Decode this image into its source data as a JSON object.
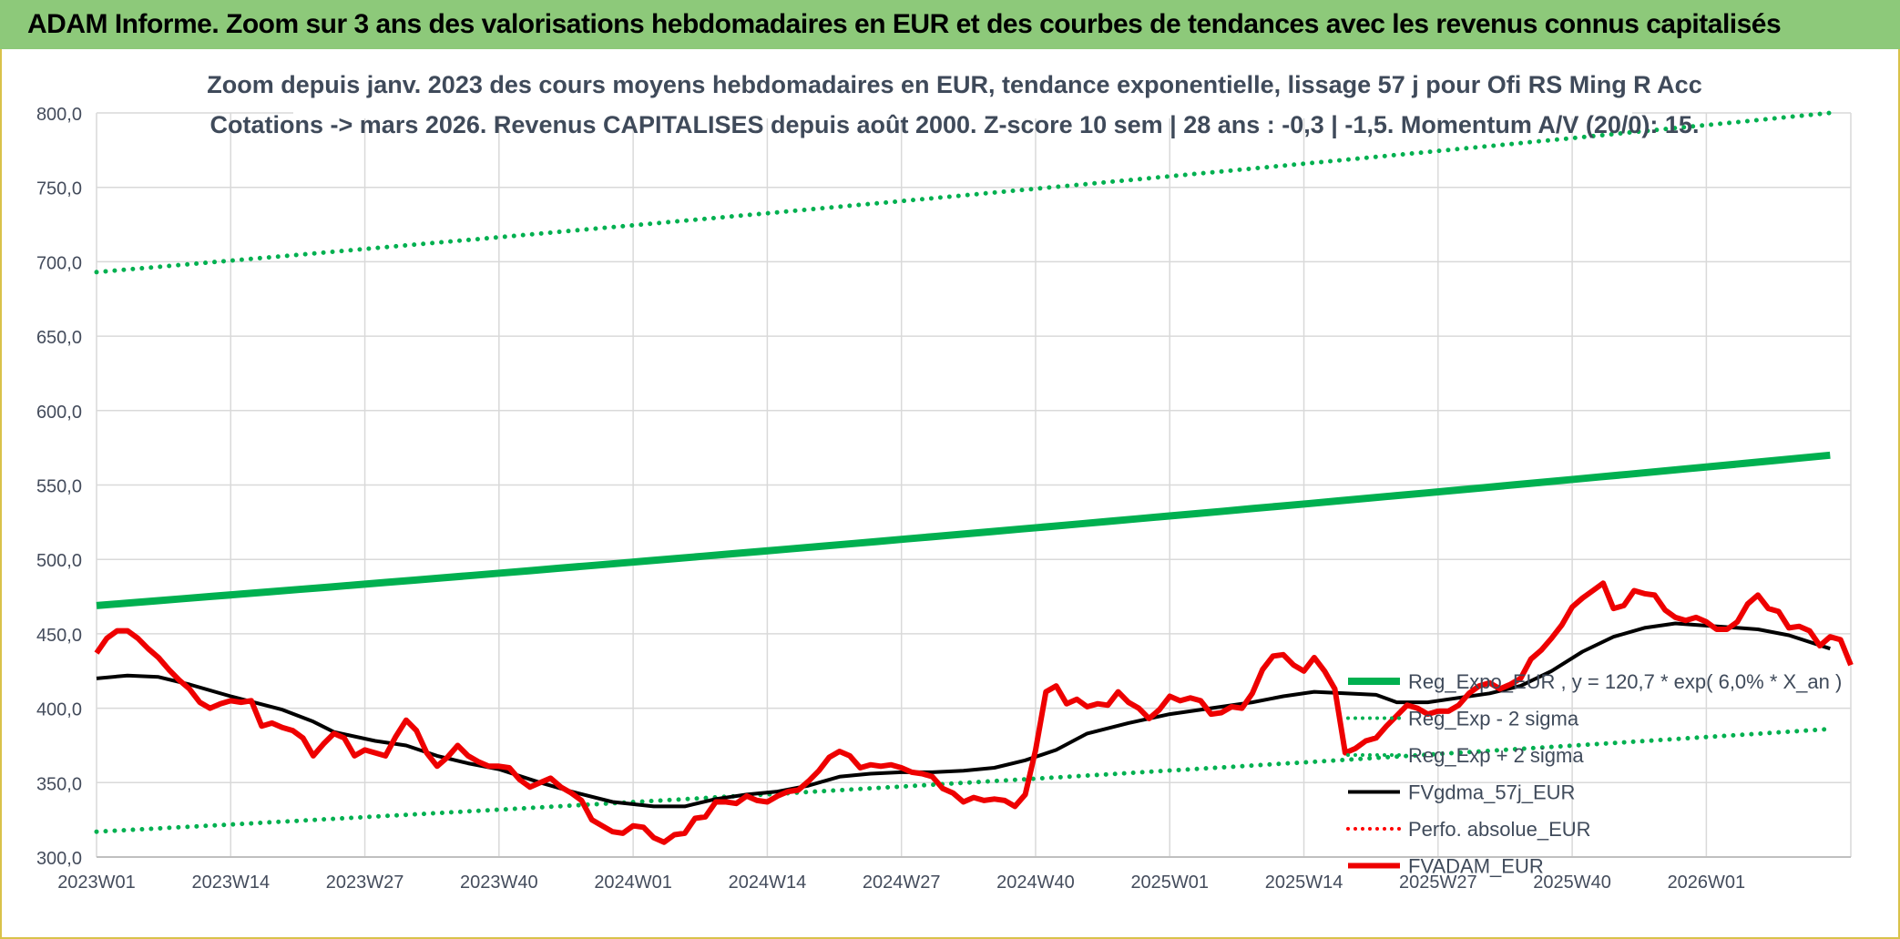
{
  "header": {
    "title": "ADAM Informe. Zoom sur 3 ans des valorisations hebdomadaires en EUR et des courbes de tendances avec les revenus connus capitalisés"
  },
  "colors": {
    "header_bg": "#8dc97a",
    "regression": "#00b050",
    "smoothed": "#000000",
    "price": "#ee0000",
    "perf": "#ff0000",
    "grid": "#d9d9d9"
  },
  "chart_data": {
    "type": "line",
    "subtitle_lines": [
      "Zoom depuis janv. 2023 des cours moyens hebdomadaires en EUR, tendance exponentielle, lissage 57 j pour Ofi RS Ming R Acc",
      "Cotations -> mars 2026. Revenus CAPITALISES depuis août 2000. Z-score 10 sem | 28 ans : -0,3 | -1,5. Momentum A/V (20/0): 15."
    ],
    "ylim": [
      300,
      800
    ],
    "yticks": [
      "800,0",
      "750,0",
      "700,0",
      "650,0",
      "600,0",
      "550,0",
      "500,0",
      "450,0",
      "400,0",
      "350,0",
      "300,0"
    ],
    "xticks": [
      "2023W01",
      "2023W14",
      "2023W27",
      "2023W40",
      "2024W01",
      "2024W14",
      "2024W27",
      "2024W40",
      "2025W01",
      "2025W14",
      "2025W27",
      "2025W40",
      "2026W01"
    ],
    "grid": true,
    "legend_position": "right",
    "legend": [
      {
        "label": "Reg_Expo_EUR , y = 120,7 * exp( 6,0% * X_an )",
        "style": "thick-solid",
        "color": "#00b050"
      },
      {
        "label": "Reg_Exp - 2 sigma",
        "style": "dotted",
        "color": "#00b050"
      },
      {
        "label": "Reg_Exp + 2 sigma",
        "style": "dotted",
        "color": "#00b050"
      },
      {
        "label": "FVgdma_57j_EUR",
        "style": "solid",
        "color": "#000000"
      },
      {
        "label": "Perfo. absolue_EUR",
        "style": "dotted",
        "color": "#ff0000"
      },
      {
        "label": "FVADAM_EUR",
        "style": "thick-solid",
        "color": "#ee0000"
      }
    ],
    "series": [
      {
        "name": "Reg_Expo_EUR",
        "style": "thick-solid",
        "color": "#00b050",
        "x": [
          0,
          168
        ],
        "start": 469,
        "end": 570,
        "kind": "exponential"
      },
      {
        "name": "Reg_Exp + 2 sigma",
        "style": "dotted",
        "color": "#00b050",
        "x": [
          0,
          168
        ],
        "start": 693,
        "end": 800,
        "kind": "exponential"
      },
      {
        "name": "Reg_Exp - 2 sigma",
        "style": "dotted",
        "color": "#00b050",
        "x": [
          0,
          168
        ],
        "start": 317,
        "end": 386,
        "kind": "exponential"
      },
      {
        "name": "FVgdma_57j_EUR",
        "style": "solid",
        "color": "#000000",
        "points": [
          [
            0,
            420
          ],
          [
            3,
            422
          ],
          [
            6,
            421
          ],
          [
            9,
            416
          ],
          [
            13,
            408
          ],
          [
            18,
            399
          ],
          [
            21,
            391
          ],
          [
            23,
            384
          ],
          [
            27,
            378
          ],
          [
            30,
            375
          ],
          [
            33,
            368
          ],
          [
            36,
            363
          ],
          [
            39,
            359
          ],
          [
            43,
            350
          ],
          [
            46,
            344
          ],
          [
            50,
            337
          ],
          [
            54,
            334
          ],
          [
            57,
            334
          ],
          [
            60,
            339
          ],
          [
            63,
            342
          ],
          [
            66,
            344
          ],
          [
            69,
            348
          ],
          [
            72,
            354
          ],
          [
            75,
            356
          ],
          [
            78,
            357
          ],
          [
            81,
            357
          ],
          [
            84,
            358
          ],
          [
            87,
            360
          ],
          [
            90,
            365
          ],
          [
            93,
            372
          ],
          [
            96,
            383
          ],
          [
            100,
            390
          ],
          [
            104,
            396
          ],
          [
            108,
            400
          ],
          [
            112,
            404
          ],
          [
            115,
            408
          ],
          [
            118,
            411
          ],
          [
            121,
            410
          ],
          [
            124,
            409
          ],
          [
            126,
            404
          ],
          [
            129,
            404
          ],
          [
            132,
            407
          ],
          [
            135,
            410
          ],
          [
            138,
            415
          ],
          [
            141,
            425
          ],
          [
            144,
            438
          ],
          [
            147,
            448
          ],
          [
            150,
            454
          ],
          [
            153,
            457
          ],
          [
            157,
            455
          ],
          [
            161,
            453
          ],
          [
            164,
            449
          ],
          [
            168,
            440
          ]
        ]
      },
      {
        "name": "FVADAM_EUR",
        "style": "thick-solid",
        "color": "#ee0000",
        "points": [
          [
            0,
            437
          ],
          [
            1,
            447
          ],
          [
            2,
            452
          ],
          [
            3,
            452
          ],
          [
            4,
            447
          ],
          [
            5,
            440
          ],
          [
            6,
            434
          ],
          [
            7,
            426
          ],
          [
            8,
            419
          ],
          [
            9,
            413
          ],
          [
            10,
            404
          ],
          [
            11,
            400
          ],
          [
            12,
            403
          ],
          [
            13,
            405
          ],
          [
            14,
            404
          ],
          [
            15,
            405
          ],
          [
            16,
            388
          ],
          [
            17,
            390
          ],
          [
            18,
            387
          ],
          [
            19,
            385
          ],
          [
            20,
            380
          ],
          [
            21,
            368
          ],
          [
            22,
            376
          ],
          [
            23,
            383
          ],
          [
            24,
            380
          ],
          [
            25,
            368
          ],
          [
            26,
            372
          ],
          [
            27,
            370
          ],
          [
            28,
            368
          ],
          [
            29,
            381
          ],
          [
            30,
            392
          ],
          [
            31,
            385
          ],
          [
            32,
            370
          ],
          [
            33,
            361
          ],
          [
            34,
            367
          ],
          [
            35,
            375
          ],
          [
            36,
            368
          ],
          [
            37,
            364
          ],
          [
            38,
            361
          ],
          [
            39,
            361
          ],
          [
            40,
            360
          ],
          [
            41,
            352
          ],
          [
            42,
            347
          ],
          [
            43,
            350
          ],
          [
            44,
            353
          ],
          [
            45,
            347
          ],
          [
            46,
            343
          ],
          [
            47,
            338
          ],
          [
            48,
            325
          ],
          [
            49,
            321
          ],
          [
            50,
            317
          ],
          [
            51,
            316
          ],
          [
            52,
            321
          ],
          [
            53,
            320
          ],
          [
            54,
            313
          ],
          [
            55,
            310
          ],
          [
            56,
            315
          ],
          [
            57,
            316
          ],
          [
            58,
            326
          ],
          [
            59,
            327
          ],
          [
            60,
            337
          ],
          [
            61,
            337
          ],
          [
            62,
            336
          ],
          [
            63,
            341
          ],
          [
            64,
            338
          ],
          [
            65,
            337
          ],
          [
            66,
            341
          ],
          [
            67,
            344
          ],
          [
            68,
            345
          ],
          [
            69,
            351
          ],
          [
            70,
            358
          ],
          [
            71,
            367
          ],
          [
            72,
            371
          ],
          [
            73,
            368
          ],
          [
            74,
            360
          ],
          [
            75,
            362
          ],
          [
            76,
            361
          ],
          [
            77,
            362
          ],
          [
            78,
            360
          ],
          [
            79,
            357
          ],
          [
            80,
            356
          ],
          [
            81,
            354
          ],
          [
            82,
            346
          ],
          [
            83,
            343
          ],
          [
            84,
            337
          ],
          [
            85,
            340
          ],
          [
            86,
            338
          ],
          [
            87,
            339
          ],
          [
            88,
            338
          ],
          [
            89,
            334
          ],
          [
            90,
            342
          ],
          [
            91,
            372
          ],
          [
            92,
            411
          ],
          [
            93,
            415
          ],
          [
            94,
            403
          ],
          [
            95,
            406
          ],
          [
            96,
            401
          ],
          [
            97,
            403
          ],
          [
            98,
            402
          ],
          [
            99,
            411
          ],
          [
            100,
            404
          ],
          [
            101,
            400
          ],
          [
            102,
            393
          ],
          [
            103,
            399
          ],
          [
            104,
            408
          ],
          [
            105,
            405
          ],
          [
            106,
            407
          ],
          [
            107,
            405
          ],
          [
            108,
            396
          ],
          [
            109,
            397
          ],
          [
            110,
            401
          ],
          [
            111,
            400
          ],
          [
            112,
            410
          ],
          [
            113,
            426
          ],
          [
            114,
            435
          ],
          [
            115,
            436
          ],
          [
            116,
            429
          ],
          [
            117,
            425
          ],
          [
            118,
            434
          ],
          [
            119,
            425
          ],
          [
            120,
            413
          ],
          [
            121,
            370
          ],
          [
            122,
            373
          ],
          [
            123,
            378
          ],
          [
            124,
            380
          ],
          [
            125,
            388
          ],
          [
            126,
            395
          ],
          [
            127,
            402
          ],
          [
            128,
            400
          ],
          [
            129,
            396
          ],
          [
            130,
            398
          ],
          [
            131,
            398
          ],
          [
            132,
            402
          ],
          [
            133,
            410
          ],
          [
            134,
            415
          ],
          [
            135,
            417
          ],
          [
            136,
            413
          ],
          [
            137,
            416
          ],
          [
            138,
            420
          ],
          [
            139,
            433
          ],
          [
            140,
            439
          ],
          [
            141,
            447
          ],
          [
            142,
            456
          ],
          [
            143,
            468
          ],
          [
            144,
            474
          ],
          [
            145,
            479
          ],
          [
            146,
            484
          ],
          [
            147,
            467
          ],
          [
            148,
            469
          ],
          [
            149,
            479
          ],
          [
            150,
            477
          ],
          [
            151,
            476
          ],
          [
            152,
            466
          ],
          [
            153,
            461
          ],
          [
            154,
            459
          ],
          [
            155,
            461
          ],
          [
            156,
            458
          ],
          [
            157,
            453
          ],
          [
            158,
            453
          ],
          [
            159,
            458
          ],
          [
            160,
            470
          ],
          [
            161,
            476
          ],
          [
            162,
            467
          ],
          [
            163,
            465
          ],
          [
            164,
            454
          ],
          [
            165,
            455
          ],
          [
            166,
            452
          ],
          [
            167,
            442
          ],
          [
            168,
            448
          ],
          [
            169,
            446
          ],
          [
            170,
            429
          ]
        ]
      }
    ]
  }
}
